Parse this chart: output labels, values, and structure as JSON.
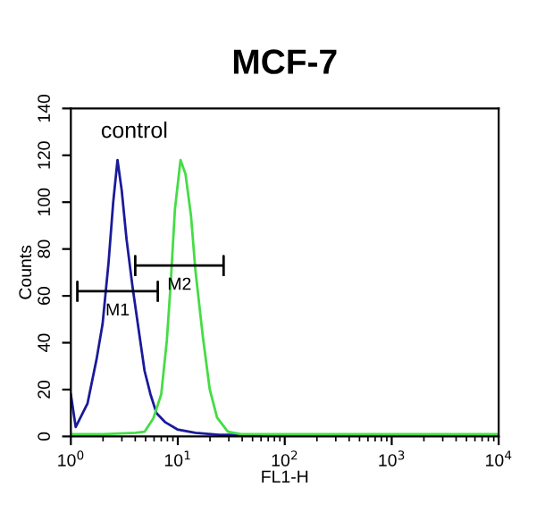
{
  "chart_data": {
    "type": "line",
    "title": "MCF-7",
    "xlabel": "FL1-H",
    "ylabel": "Counts",
    "log": "x",
    "xlim": [
      1,
      10000
    ],
    "ylim": [
      0,
      140
    ],
    "xticks": [
      {
        "value": 1,
        "label": "10$^{0}$"
      },
      {
        "value": 10,
        "label": "10$^{1}$"
      },
      {
        "value": 100,
        "label": "10$^{2}$"
      },
      {
        "value": 1000,
        "label": "10$^{3}$"
      },
      {
        "value": 10000,
        "label": "10$^{4}$"
      }
    ],
    "yticks": [
      0,
      20,
      40,
      60,
      80,
      100,
      120,
      140
    ],
    "grid": false,
    "legend": false,
    "marker": "none",
    "line_style": "solid",
    "annotations": [
      "control"
    ],
    "series": [
      {
        "color": "#1a1a9a",
        "x": [
          1.0,
          1.11,
          1.43,
          1.74,
          1.98,
          2.25,
          2.49,
          2.73,
          2.99,
          3.32,
          3.77,
          4.29,
          4.89,
          5.55,
          6.31,
          7.66,
          9.9,
          14.6,
          24.5,
          60
        ],
        "values": [
          18,
          4,
          14,
          33,
          48,
          74,
          100,
          118,
          105,
          84,
          64,
          46,
          28,
          18,
          10,
          6,
          3,
          1.5,
          0.7,
          0.5
        ]
      },
      {
        "color": "#44dd44",
        "x": [
          1.0,
          2.0,
          4.0,
          4.89,
          5.9,
          7.0,
          7.9,
          8.6,
          9.4,
          10.6,
          11.8,
          13.3,
          14.6,
          17.1,
          19.9,
          23.3,
          29.4,
          39,
          100,
          1000,
          10000
        ],
        "values": [
          1,
          1,
          1.5,
          2,
          7.7,
          18,
          41,
          66,
          97,
          118,
          112,
          94,
          71,
          43,
          20,
          8,
          2,
          1,
          1,
          1,
          1
        ]
      },
      {
        "name": "M1",
        "color": "#000000",
        "x": [
          1.15,
          1.15,
          1.15,
          6.5,
          6.5,
          6.5
        ],
        "values": [
          58,
          66,
          62,
          62,
          66,
          58
        ]
      },
      {
        "name": "M2",
        "color": "#000000",
        "x": [
          4.0,
          4.0,
          4.0,
          26.8,
          26.8,
          26.8
        ],
        "values": [
          69,
          77,
          73,
          73,
          77,
          69
        ]
      }
    ]
  }
}
